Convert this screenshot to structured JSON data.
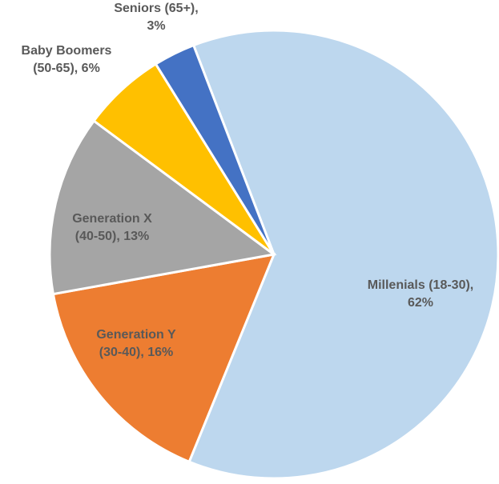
{
  "chart_data": {
    "type": "pie",
    "labels": [
      [
        "Millenials (18-30),",
        "62%"
      ],
      [
        "Generation Y",
        "(30-40), 16%"
      ],
      [
        "Generation X",
        "(40-50), 13%"
      ],
      [
        "Baby Boomers",
        "(50-65), 6%"
      ],
      [
        "Seniors (65+),",
        "3%"
      ]
    ],
    "values": [
      62,
      16,
      13,
      6,
      3
    ],
    "colors": [
      "#bdd7ee",
      "#ed7d31",
      "#a5a5a5",
      "#ffc000",
      "#4472c4"
    ]
  }
}
